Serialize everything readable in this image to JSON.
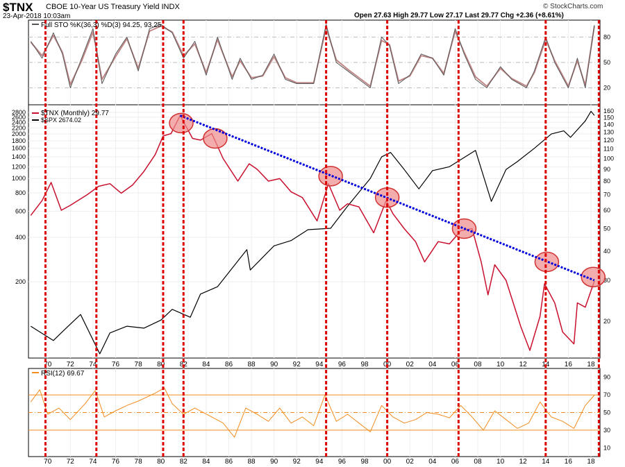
{
  "header": {
    "symbol": "$TNX",
    "description": "CBOE 10-Year US Treasury Yield INDX",
    "datetime": "23-Apr-2018 10:03am",
    "ohlc": "Open 27.63  High 29.77  Low 27.17  Last 29.77  Chg +2.36 (+8.61%)",
    "attribution": "© StockCharts.com"
  },
  "colors": {
    "tnx": "#c8102e",
    "spx": "#000000",
    "rsi": "#f28c1e",
    "trendline": "#0000dd",
    "markers": "#dd0000",
    "circle_fill": "#f08a8a"
  },
  "chart_data": [
    {
      "type": "line",
      "panel": "stochastic",
      "legend": [
        "Full STO %K(36,3) %D(3) 94.25, 93.25"
      ],
      "series": [
        {
          "name": "%K",
          "x": [
            1968.5,
            1969.5,
            1970.5,
            1971.3,
            1972,
            1973,
            1974,
            1974.8,
            1976,
            1977,
            1978,
            1979,
            1980,
            1981,
            1982,
            1983,
            1984,
            1985,
            1986.3,
            1987,
            1988,
            1989,
            1990,
            1991,
            1992,
            1993.5,
            1994.6,
            1995.5,
            1996.5,
            1997.5,
            1998.5,
            1999.5,
            2000.2,
            2001,
            2002,
            2003,
            2004,
            2005,
            2006,
            2006.8,
            2007.8,
            2008.8,
            2010,
            2011,
            2012.3,
            2013,
            2014,
            2014.8,
            2016,
            2016.8,
            2017.5,
            2018.3
          ],
          "values": [
            75,
            55,
            85,
            60,
            20,
            55,
            90,
            25,
            60,
            80,
            40,
            90,
            95,
            85,
            55,
            75,
            35,
            80,
            30,
            55,
            30,
            35,
            60,
            30,
            25,
            25,
            95,
            50,
            40,
            30,
            20,
            80,
            70,
            25,
            35,
            60,
            55,
            35,
            90,
            60,
            30,
            20,
            45,
            30,
            20,
            40,
            80,
            50,
            20,
            55,
            20,
            94
          ]
        },
        {
          "name": "%D",
          "x": [
            1968.5,
            1969.5,
            1970.5,
            1971.3,
            1972,
            1973,
            1974,
            1974.8,
            1976,
            1977,
            1978,
            1979,
            1980,
            1981,
            1982,
            1983,
            1984,
            1985,
            1986.3,
            1987,
            1988,
            1989,
            1990,
            1991,
            1992,
            1993.5,
            1994.6,
            1995.5,
            1996.5,
            1997.5,
            1998.5,
            1999.5,
            2000.2,
            2001,
            2002,
            2003,
            2004,
            2005,
            2006,
            2006.8,
            2007.8,
            2008.8,
            2010,
            2011,
            2012.3,
            2013,
            2014,
            2014.8,
            2016,
            2016.8,
            2017.5,
            2018.3
          ],
          "values": [
            74,
            58,
            82,
            62,
            24,
            52,
            86,
            30,
            57,
            78,
            43,
            87,
            93,
            86,
            58,
            72,
            38,
            77,
            33,
            52,
            32,
            34,
            57,
            32,
            26,
            26,
            91,
            53,
            42,
            32,
            22,
            76,
            71,
            28,
            34,
            58,
            55,
            37,
            87,
            62,
            33,
            22,
            43,
            31,
            22,
            38,
            77,
            52,
            22,
            52,
            23,
            93
          ]
        }
      ],
      "yticks": [
        20,
        50,
        80
      ],
      "ylim": [
        0,
        100
      ]
    },
    {
      "type": "line",
      "panel": "main",
      "legend": [
        "$TNX (Monthly) 29.77",
        "$SPX 2674.02"
      ],
      "series": [
        {
          "name": "$TNX",
          "axis": "right",
          "x": [
            1968.5,
            1969.5,
            1970.3,
            1971.2,
            1972,
            1973.5,
            1974.5,
            1975.5,
            1976.5,
            1977.5,
            1978.5,
            1979.5,
            1980.2,
            1980.9,
            1981.7,
            1982.8,
            1983.5,
            1984.5,
            1985.5,
            1986.8,
            1987.8,
            1988.5,
            1989.5,
            1990.5,
            1991.5,
            1992.5,
            1993.8,
            1994.8,
            1995.8,
            1996.5,
            1997.5,
            1998.8,
            1999.9,
            2000.5,
            2001.5,
            2002.5,
            2003.3,
            2004.5,
            2005.5,
            2006.5,
            2007.5,
            2008.3,
            2008.9,
            2009.5,
            2010.5,
            2011.8,
            2012.6,
            2013.5,
            2013.9,
            2014.8,
            2015.5,
            2016.5,
            2016.8,
            2017.5,
            2018.3
          ],
          "values": [
            57,
            66,
            79,
            60,
            63,
            70,
            76,
            78,
            71,
            77,
            88,
            104,
            125,
            128,
            153,
            122,
            120,
            128,
            100,
            80,
            95,
            90,
            80,
            82,
            72,
            68,
            54,
            78,
            60,
            64,
            62,
            48,
            66,
            58,
            50,
            44,
            36,
            44,
            43,
            49,
            50,
            36,
            26,
            35,
            30,
            19,
            15,
            21,
            29,
            24,
            18,
            16,
            24,
            23,
            29.77
          ]
        },
        {
          "name": "$SPX",
          "axis": "left",
          "x": [
            1968.5,
            1970.5,
            1971.5,
            1972.9,
            1974.6,
            1975.5,
            1977,
            1978.5,
            1980,
            1981,
            1982.6,
            1983.5,
            1985,
            1987.6,
            1987.9,
            1990,
            1991.5,
            1993,
            1995,
            1996.5,
            1998.5,
            1999.5,
            2000.3,
            2001.5,
            2002.8,
            2004,
            2005.5,
            2007.8,
            2009.2,
            2010.5,
            2011.5,
            2013,
            2014.5,
            2015.6,
            2016.2,
            2017.5,
            2018.0,
            2018.3
          ],
          "values": [
            100,
            80,
            95,
            120,
            65,
            90,
            100,
            97,
            110,
            130,
            115,
            165,
            185,
            330,
            240,
            350,
            380,
            450,
            460,
            650,
            1000,
            1400,
            1500,
            1150,
            850,
            1130,
            1200,
            1550,
            700,
            1150,
            1300,
            1600,
            2000,
            2100,
            1900,
            2450,
            2850,
            2674
          ]
        }
      ],
      "left_ticks": [
        200,
        400,
        600,
        800,
        1000,
        1200,
        1400,
        1600,
        1800,
        2000,
        2200,
        2400,
        2600,
        2800
      ],
      "right_ticks": [
        20,
        30,
        40,
        50,
        60,
        70,
        80,
        90,
        100,
        110,
        120,
        130,
        140,
        150,
        160
      ],
      "yscale": "log",
      "trendline": {
        "x": [
          1981.7,
          2018.3
        ],
        "values": [
          153,
          30
        ]
      },
      "circle_markers": {
        "x": [
          1981.8,
          1984.8,
          1995.0,
          2000.0,
          2006.8,
          2014.1,
          2018.2
        ],
        "values": [
          142,
          122,
          84,
          68,
          50,
          36,
          31
        ]
      },
      "vertical_markers": [
        1969.8,
        1974.3,
        1980.2,
        1982.0,
        1994.6,
        2000.0,
        2006.3,
        2014.0,
        2018.7
      ]
    },
    {
      "type": "line",
      "panel": "rsi",
      "legend": [
        "RSI(12) 69.67"
      ],
      "series": [
        {
          "name": "RSI(12)",
          "x": [
            1968.5,
            1969.3,
            1970,
            1971,
            1972,
            1973.3,
            1974.2,
            1975,
            1976,
            1977,
            1978,
            1979.5,
            1980.3,
            1981,
            1982,
            1983,
            1984.5,
            1985.5,
            1986.5,
            1987.5,
            1988.5,
            1989.5,
            1990.5,
            1991.5,
            1992.5,
            1993.5,
            1994.5,
            1995.5,
            1996.5,
            1997.5,
            1998.5,
            1999.5,
            2000.5,
            2001.5,
            2002.5,
            2003.5,
            2004.5,
            2005.5,
            2006.5,
            2007.5,
            2008.5,
            2009.5,
            2010.5,
            2011.5,
            2012.5,
            2013.5,
            2014.5,
            2015.5,
            2016.5,
            2017.5,
            2018.3
          ],
          "values": [
            62,
            76,
            48,
            55,
            42,
            60,
            75,
            45,
            52,
            58,
            63,
            72,
            78,
            60,
            48,
            55,
            45,
            38,
            22,
            55,
            48,
            40,
            55,
            38,
            45,
            35,
            70,
            40,
            48,
            38,
            28,
            58,
            45,
            38,
            42,
            50,
            48,
            44,
            58,
            45,
            30,
            52,
            42,
            32,
            38,
            62,
            45,
            40,
            32,
            58,
            69.67
          ]
        }
      ],
      "yticks": [
        10,
        30,
        50,
        70,
        90
      ],
      "ylim": [
        0,
        100
      ],
      "reference_lines": [
        30,
        50,
        70
      ]
    }
  ],
  "xaxis": {
    "labels": [
      "70",
      "72",
      "74",
      "76",
      "78",
      "80",
      "82",
      "84",
      "86",
      "88",
      "90",
      "92",
      "94",
      "96",
      "98",
      "00",
      "02",
      "04",
      "06",
      "08",
      "10",
      "12",
      "14",
      "16",
      "18"
    ],
    "years": [
      1970,
      1972,
      1974,
      1976,
      1978,
      1980,
      1982,
      1984,
      1986,
      1988,
      1990,
      1992,
      1994,
      1996,
      1998,
      2000,
      2002,
      2004,
      2006,
      2008,
      2010,
      2012,
      2014,
      2016,
      2018
    ]
  }
}
